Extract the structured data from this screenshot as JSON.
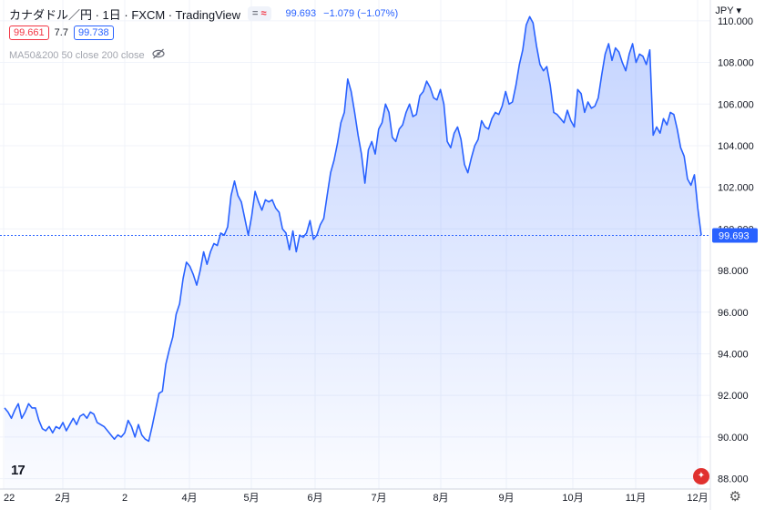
{
  "header": {
    "symbol": "カナダドル／円 · 1日 · FXCM · TradingView",
    "toggle_a": "=",
    "toggle_b": "≈",
    "price": "99.693",
    "change": "−1.079 (−1.07%)"
  },
  "quote_row": {
    "bid": "99.661",
    "spread": "7.7",
    "ask": "99.738"
  },
  "indicator": {
    "label": "MA50&200 50 close 200 close"
  },
  "currency_label": "JPY",
  "last_price_label": "99.693",
  "colors": {
    "line": "#2962ff",
    "grid": "#f0f3fa",
    "price_label_bg": "#2962ff"
  },
  "chart_data": {
    "type": "area",
    "y_ticks": [
      "88.000",
      "90.000",
      "92.000",
      "94.000",
      "96.000",
      "98.000",
      "100.000",
      "102.000",
      "104.000",
      "106.000",
      "108.000",
      "110.000"
    ],
    "x_ticks": [
      "22",
      "2月",
      "2",
      "4月",
      "5月",
      "6月",
      "7月",
      "8月",
      "9月",
      "10月",
      "11月",
      "12月"
    ],
    "ylim": [
      87.5,
      111
    ],
    "grid": true,
    "series": [
      {
        "values": [
          91.4,
          91.2,
          90.9,
          91.3,
          91.6,
          90.9,
          91.2,
          91.6,
          91.4,
          91.4,
          90.8,
          90.4,
          90.3,
          90.5,
          90.2,
          90.5,
          90.4,
          90.7,
          90.3,
          90.6,
          90.9,
          90.6,
          91,
          91.1,
          90.9,
          91.2,
          91.1,
          90.7,
          90.6,
          90.5,
          90.3,
          90.1,
          89.9,
          90.1,
          90.0,
          90.2,
          90.8,
          90.5,
          90.0,
          90.6,
          90.1,
          89.9,
          89.8,
          90.5,
          91.3,
          92.1,
          92.2,
          93.5,
          94.2,
          94.8,
          95.9,
          96.4,
          97.6,
          98.4,
          98.2,
          97.8,
          97.3,
          98.0,
          98.9,
          98.3,
          98.9,
          99.3,
          99.2,
          99.8,
          99.7,
          100.1,
          101.6,
          102.3,
          101.6,
          101.3,
          100.5,
          99.7,
          100.6,
          101.8,
          101.3,
          100.9,
          101.4,
          101.3,
          101.4,
          101.0,
          100.8,
          100.0,
          99.8,
          99.0,
          99.9,
          98.9,
          99.7,
          99.6,
          99.8,
          100.4,
          99.5,
          99.7,
          100.2,
          100.5,
          101.6,
          102.7,
          103.3,
          104.1,
          105.1,
          105.6,
          107.2,
          106.6,
          105.6,
          104.5,
          103.6,
          102.2,
          103.8,
          104.2,
          103.6,
          104.8,
          105.1,
          106.0,
          105.6,
          104.4,
          104.2,
          104.8,
          105.0,
          105.6,
          106.0,
          105.4,
          105.5,
          106.4,
          106.6,
          107.1,
          106.8,
          106.3,
          106.2,
          106.7,
          106.0,
          104.2,
          103.9,
          104.6,
          104.9,
          104.3,
          103.1,
          102.7,
          103.4,
          104.0,
          104.3,
          105.2,
          104.9,
          104.8,
          105.3,
          105.6,
          105.5,
          105.9,
          106.6,
          106.0,
          106.1,
          106.9,
          107.9,
          108.6,
          109.8,
          110.2,
          109.9,
          108.8,
          107.9,
          107.6,
          107.8,
          106.9,
          105.6,
          105.5,
          105.3,
          105.1,
          105.7,
          105.2,
          104.9,
          106.7,
          106.5,
          105.6,
          106.1,
          105.8,
          105.9,
          106.3,
          107.4,
          108.4,
          108.9,
          108.1,
          108.7,
          108.5,
          108.0,
          107.6,
          108.4,
          108.9,
          108.0,
          108.4,
          108.3,
          107.9,
          108.6,
          104.5,
          104.9,
          104.6,
          105.3,
          105.0,
          105.6,
          105.5,
          104.8,
          103.9,
          103.5,
          102.4,
          102.1,
          102.6,
          101.0,
          99.69
        ]
      }
    ]
  }
}
